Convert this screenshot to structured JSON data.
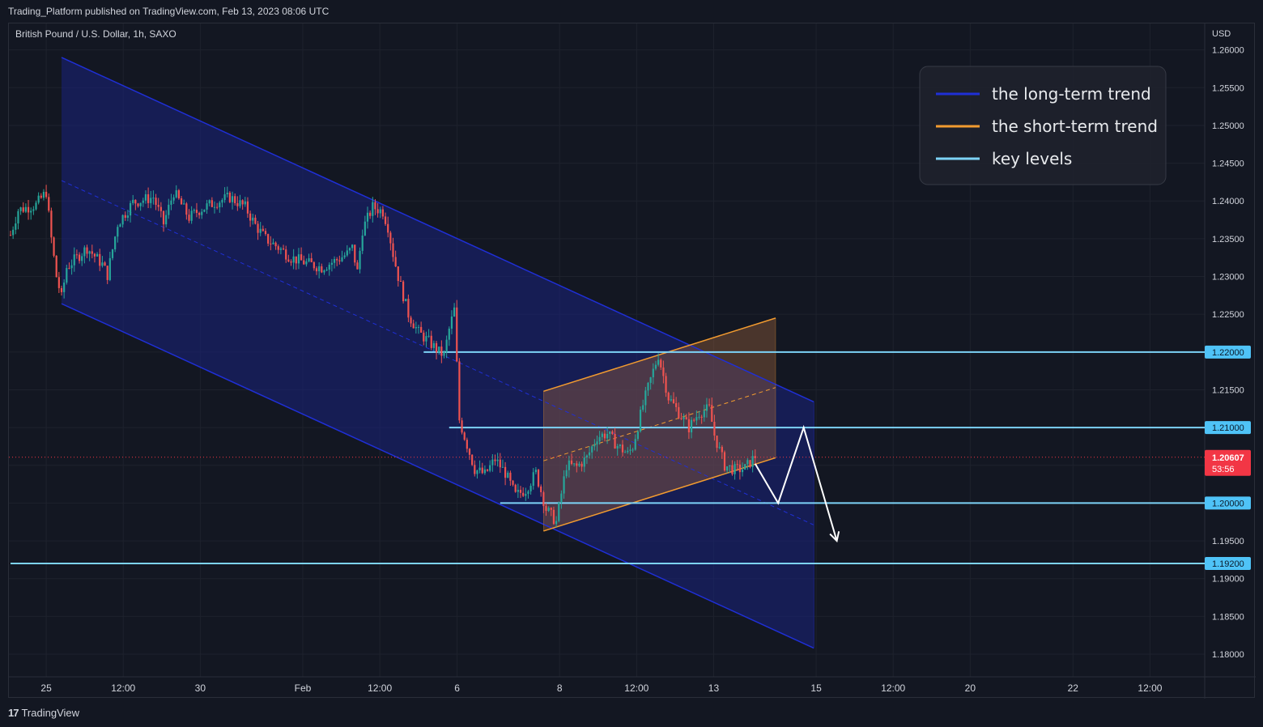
{
  "header": {
    "published_text": "Trading_Platform published on TradingView.com, Feb 13, 2023 08:06 UTC"
  },
  "footer": {
    "logo_glyph": "17",
    "brand": "TradingView"
  },
  "colors": {
    "background": "#131722",
    "grid": "#1e222d",
    "up": "#26a69a",
    "down": "#ef5350",
    "long_trend": "#1f2fd6",
    "short_trend": "#f29b30",
    "key_level": "#7dd3f7",
    "price_tag": "#f23645",
    "key_tag": "#4fc3f7"
  },
  "chart_data": {
    "type": "candlestick",
    "symbol_label": "British Pound / U.S. Dollar, 1h, SAXO",
    "currency": "USD",
    "y_axis": {
      "range": [
        1.177,
        1.2635
      ],
      "ticks": [
        "1.26000",
        "1.25500",
        "1.25000",
        "1.24500",
        "1.24000",
        "1.23500",
        "1.23000",
        "1.22500",
        "1.22000",
        "1.21500",
        "1.21000",
        "1.20500",
        "1.20000",
        "1.19500",
        "1.19000",
        "1.18500",
        "1.18000"
      ]
    },
    "x_axis": {
      "ticks": [
        {
          "label": "25",
          "slot": 14.0
        },
        {
          "label": "12:00",
          "slot": 44.2
        },
        {
          "label": "30",
          "slot": 74.4
        },
        {
          "label": "Feb",
          "slot": 114.6
        },
        {
          "label": "12:00",
          "slot": 144.8
        },
        {
          "label": "6",
          "slot": 175.1
        },
        {
          "label": "8",
          "slot": 215.3
        },
        {
          "label": "12:00",
          "slot": 245.5
        },
        {
          "label": "13",
          "slot": 275.7
        },
        {
          "label": "15",
          "slot": 315.9
        },
        {
          "label": "12:00",
          "slot": 346.1
        },
        {
          "label": "20",
          "slot": 376.3
        },
        {
          "label": "22",
          "slot": 416.6
        },
        {
          "label": "12:00",
          "slot": 446.8
        }
      ]
    },
    "price_waypoints": [
      [
        0,
        1.2355
      ],
      [
        3,
        1.2388
      ],
      [
        10,
        1.2395
      ],
      [
        14,
        1.2412
      ],
      [
        16,
        1.235
      ],
      [
        18,
        1.23
      ],
      [
        20,
        1.2272
      ],
      [
        22,
        1.2312
      ],
      [
        30,
        1.2338
      ],
      [
        36,
        1.2316
      ],
      [
        38,
        1.2302
      ],
      [
        42,
        1.237
      ],
      [
        48,
        1.2398
      ],
      [
        56,
        1.2405
      ],
      [
        60,
        1.237
      ],
      [
        64,
        1.2412
      ],
      [
        70,
        1.2378
      ],
      [
        74,
        1.2388
      ],
      [
        80,
        1.2398
      ],
      [
        86,
        1.2405
      ],
      [
        92,
        1.2392
      ],
      [
        96,
        1.2368
      ],
      [
        100,
        1.235
      ],
      [
        106,
        1.2336
      ],
      [
        110,
        1.2325
      ],
      [
        116,
        1.2318
      ],
      [
        122,
        1.2312
      ],
      [
        128,
        1.2322
      ],
      [
        132,
        1.233
      ],
      [
        134,
        1.2338
      ],
      [
        136,
        1.2306
      ],
      [
        138,
        1.2362
      ],
      [
        142,
        1.2392
      ],
      [
        146,
        1.2386
      ],
      [
        148,
        1.2366
      ],
      [
        150,
        1.233
      ],
      [
        152,
        1.23
      ],
      [
        156,
        1.225
      ],
      [
        160,
        1.2226
      ],
      [
        164,
        1.2214
      ],
      [
        168,
        1.22
      ],
      [
        170,
        1.2196
      ],
      [
        172,
        1.223
      ],
      [
        174,
        1.2256
      ],
      [
        176,
        1.211
      ],
      [
        178,
        1.2088
      ],
      [
        182,
        1.2045
      ],
      [
        186,
        1.2038
      ],
      [
        190,
        1.2058
      ],
      [
        194,
        1.204
      ],
      [
        198,
        1.201
      ],
      [
        202,
        1.2018
      ],
      [
        206,
        1.204
      ],
      [
        210,
        1.1992
      ],
      [
        214,
        1.1975
      ],
      [
        218,
        1.205
      ],
      [
        222,
        1.2048
      ],
      [
        226,
        1.206
      ],
      [
        230,
        1.2088
      ],
      [
        234,
        1.2092
      ],
      [
        238,
        1.2076
      ],
      [
        242,
        1.2065
      ],
      [
        244,
        1.2075
      ],
      [
        248,
        1.213
      ],
      [
        252,
        1.2175
      ],
      [
        254,
        1.2196
      ],
      [
        258,
        1.214
      ],
      [
        262,
        1.212
      ],
      [
        266,
        1.21
      ],
      [
        270,
        1.212
      ],
      [
        274,
        1.2125
      ],
      [
        276,
        1.209
      ],
      [
        280,
        1.205
      ],
      [
        284,
        1.2044
      ],
      [
        288,
        1.2046
      ],
      [
        290,
        1.2054
      ],
      [
        292,
        1.2062
      ]
    ],
    "last_price": {
      "value": 1.20607,
      "label": "1.20607",
      "countdown": "53:56"
    },
    "key_levels": [
      {
        "value": 1.22,
        "label": "1.22000",
        "from_slot": 162
      },
      {
        "value": 1.21,
        "label": "1.21000",
        "from_slot": 172
      },
      {
        "value": 1.2,
        "label": "1.20000",
        "from_slot": 192
      },
      {
        "value": 1.192,
        "label": "1.19200",
        "from_slot": 0
      }
    ],
    "long_term_channel": {
      "upper": [
        [
          20,
          1.259
        ],
        [
          315,
          1.2134
        ]
      ],
      "lower": [
        [
          20,
          1.2264
        ],
        [
          315,
          1.1808
        ]
      ],
      "mid": [
        [
          20,
          1.2427
        ],
        [
          315,
          1.1971
        ]
      ]
    },
    "short_term_channel": {
      "upper": [
        [
          209,
          1.2148
        ],
        [
          300,
          1.2245
        ]
      ],
      "lower": [
        [
          209,
          1.1963
        ],
        [
          300,
          1.206
        ]
      ],
      "mid": [
        [
          209,
          1.2056
        ],
        [
          300,
          1.2153
        ]
      ]
    },
    "projection_path": [
      [
        292,
        1.2052
      ],
      [
        301,
        1.2
      ],
      [
        311,
        1.21
      ],
      [
        324,
        1.195
      ]
    ],
    "legend": {
      "position": "top-right",
      "entries": [
        {
          "label": "the long-term trend",
          "color": "#1f2fd6"
        },
        {
          "label": "the short-term trend",
          "color": "#f29b30"
        },
        {
          "label": "key levels",
          "color": "#7dd3f7"
        }
      ]
    },
    "grid": true
  }
}
